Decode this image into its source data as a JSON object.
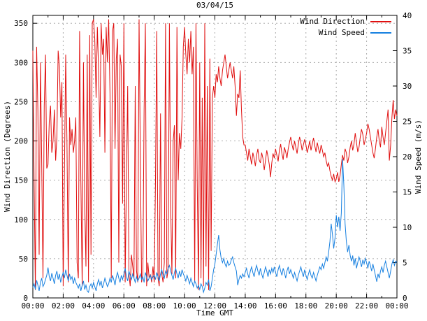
{
  "chart_data": {
    "type": "line",
    "title": "03/04/15",
    "xlabel": "Time GMT",
    "grid": true,
    "legend_position": "top-right-inside",
    "x_range_hours": [
      0,
      24
    ],
    "x_major_step_hours": 2,
    "x_minor_step_hours": 1,
    "x_tick_labels": [
      "00:00",
      "02:00",
      "04:00",
      "06:00",
      "08:00",
      "10:00",
      "12:00",
      "14:00",
      "16:00",
      "18:00",
      "20:00",
      "22:00",
      "00:00"
    ],
    "axes": {
      "left": {
        "label": "Wind Direction (Degrees)",
        "range": [
          0,
          360
        ],
        "ticks": [
          0,
          50,
          100,
          150,
          200,
          250,
          300,
          350
        ]
      },
      "right": {
        "label": "Wind Speed (m/s)",
        "range": [
          0,
          40
        ],
        "ticks": [
          0,
          5,
          10,
          15,
          20,
          25,
          30,
          35,
          40
        ]
      }
    },
    "colors": {
      "wind_direction": "#e01010",
      "wind_speed": "#1780e0",
      "grid": "#aaaaaa",
      "frame": "#000000"
    },
    "step_minutes": 5,
    "series": [
      {
        "name": "Wind Direction",
        "axis": "left",
        "color": "#e01010",
        "values": [
          315,
          150,
          10,
          320,
          240,
          55,
          300,
          170,
          25,
          245,
          310,
          165,
          170,
          225,
          245,
          185,
          200,
          240,
          175,
          205,
          315,
          295,
          230,
          275,
          15,
          160,
          310,
          200,
          20,
          230,
          195,
          215,
          185,
          200,
          230,
          45,
          25,
          340,
          150,
          15,
          300,
          120,
          40,
          310,
          20,
          335,
          55,
          350,
          355,
          330,
          255,
          345,
          290,
          205,
          350,
          310,
          330,
          185,
          345,
          300,
          355,
          260,
          25,
          340,
          350,
          190,
          305,
          330,
          45,
          310,
          295,
          120,
          350,
          20,
          150,
          270,
          30,
          15,
          55,
          40,
          25,
          270,
          35,
          20,
          355,
          180,
          20,
          30,
          240,
          350,
          15,
          45,
          25,
          30,
          20,
          40,
          20,
          150,
          340,
          25,
          15,
          235,
          30,
          20,
          45,
          350,
          25,
          35,
          350,
          120,
          30,
          200,
          220,
          25,
          345,
          150,
          210,
          190,
          230,
          320,
          345,
          310,
          285,
          330,
          300,
          340,
          285,
          320,
          20,
          350,
          150,
          10,
          300,
          25,
          255,
          15,
          350,
          40,
          270,
          10,
          305,
          60,
          255,
          270,
          255,
          285,
          275,
          295,
          280,
          270,
          290,
          300,
          310,
          295,
          280,
          290,
          300,
          290,
          280,
          295,
          270,
          232,
          260,
          255,
          290,
          240,
          205,
          195,
          195,
          185,
          175,
          190,
          180,
          170,
          185,
          178,
          168,
          182,
          190,
          176,
          172,
          185,
          178,
          163,
          175,
          188,
          180,
          170,
          154,
          172,
          184,
          178,
          190,
          182,
          174,
          188,
          196,
          184,
          176,
          192,
          186,
          178,
          190,
          198,
          205,
          195,
          188,
          200,
          192,
          184,
          196,
          205,
          198,
          188,
          195,
          202,
          195,
          185,
          192,
          200,
          188,
          196,
          204,
          194,
          186,
          198,
          190,
          184,
          195,
          188,
          180,
          185,
          175,
          168,
          172,
          162,
          155,
          150,
          158,
          148,
          152,
          160,
          148,
          156,
          170,
          182,
          175,
          190,
          185,
          172,
          180,
          192,
          200,
          188,
          196,
          210,
          198,
          186,
          192,
          205,
          215,
          208,
          195,
          202,
          210,
          222,
          215,
          205,
          195,
          185,
          178,
          190,
          205,
          215,
          200,
          192,
          218,
          205,
          195,
          210,
          225,
          240,
          175,
          195,
          230,
          252,
          228,
          240,
          232
        ]
      },
      {
        "name": "Wind Speed",
        "axis": "right",
        "color": "#1780e0",
        "values": [
          1.5,
          2.0,
          1.2,
          2.5,
          1.8,
          1.0,
          2.2,
          2.8,
          1.6,
          2.0,
          2.6,
          3.2,
          4.3,
          3.0,
          2.4,
          3.5,
          2.8,
          2.0,
          3.2,
          3.8,
          2.6,
          3.4,
          2.2,
          3.0,
          3.6,
          2.8,
          4.0,
          3.2,
          2.4,
          3.4,
          2.6,
          3.0,
          2.0,
          2.8,
          2.2,
          1.8,
          1.4,
          2.0,
          1.0,
          1.8,
          2.4,
          1.2,
          1.8,
          1.0,
          0.8,
          1.6,
          2.0,
          1.4,
          2.2,
          1.6,
          1.0,
          2.0,
          2.6,
          1.8,
          2.4,
          1.4,
          2.0,
          2.8,
          2.2,
          1.6,
          2.0,
          2.8,
          2.2,
          3.2,
          2.6,
          1.8,
          3.0,
          3.6,
          2.8,
          2.2,
          3.2,
          2.6,
          3.4,
          4.2,
          3.0,
          2.4,
          3.8,
          3.2,
          2.6,
          3.4,
          2.8,
          2.2,
          3.0,
          2.4,
          2.8,
          3.4,
          2.6,
          3.0,
          2.2,
          3.6,
          3.0,
          2.4,
          2.8,
          3.2,
          2.6,
          3.0,
          3.2,
          2.6,
          3.6,
          3.0,
          2.4,
          3.4,
          4.0,
          3.2,
          2.8,
          3.8,
          3.4,
          4.2,
          4.6,
          3.8,
          3.2,
          2.6,
          3.6,
          4.2,
          3.4,
          2.8,
          3.8,
          3.0,
          4.0,
          3.4,
          3.0,
          2.4,
          3.2,
          2.6,
          2.0,
          2.8,
          2.2,
          1.6,
          2.4,
          2.0,
          1.4,
          1.8,
          1.2,
          2.0,
          1.6,
          0.8,
          1.4,
          2.2,
          1.8,
          2.6,
          1.0,
          1.6,
          2.8,
          4.0,
          4.8,
          6.2,
          7.6,
          8.9,
          6.8,
          5.6,
          5.0,
          5.6,
          4.8,
          4.4,
          5.2,
          4.6,
          4.8,
          5.4,
          5.8,
          5.0,
          4.4,
          3.8,
          1.8,
          2.6,
          3.2,
          2.8,
          3.4,
          3.0,
          3.6,
          4.2,
          3.4,
          2.8,
          3.8,
          4.4,
          3.6,
          3.0,
          4.0,
          4.6,
          3.8,
          3.2,
          4.2,
          3.4,
          2.8,
          3.6,
          4.4,
          3.8,
          3.0,
          4.0,
          3.4,
          4.2,
          3.6,
          4.4,
          3.6,
          3.0,
          4.0,
          4.6,
          3.8,
          3.2,
          4.2,
          3.6,
          2.8,
          3.8,
          4.4,
          3.4,
          4.0,
          3.4,
          2.8,
          3.6,
          3.0,
          2.4,
          3.2,
          3.8,
          4.4,
          3.6,
          3.0,
          4.0,
          3.2,
          2.6,
          3.4,
          4.0,
          3.2,
          2.8,
          3.6,
          3.0,
          2.4,
          3.2,
          3.8,
          4.4,
          4.0,
          4.8,
          4.2,
          5.0,
          5.8,
          5.2,
          6.5,
          8.0,
          10.5,
          9.0,
          7.0,
          8.5,
          11.7,
          10.0,
          11.5,
          9.5,
          12.0,
          19.7,
          16.0,
          10.5,
          8.0,
          6.5,
          7.5,
          6.0,
          5.2,
          6.0,
          4.6,
          5.6,
          4.2,
          5.0,
          5.8,
          5.2,
          4.4,
          5.4,
          4.8,
          5.6,
          5.0,
          4.2,
          5.2,
          4.6,
          3.8,
          4.8,
          4.0,
          3.2,
          2.3,
          3.4,
          2.8,
          3.8,
          4.4,
          3.6,
          4.6,
          5.2,
          4.4,
          3.6,
          2.8,
          3.8,
          4.8,
          5.4,
          4.6,
          5.2,
          5.0
        ]
      }
    ]
  }
}
